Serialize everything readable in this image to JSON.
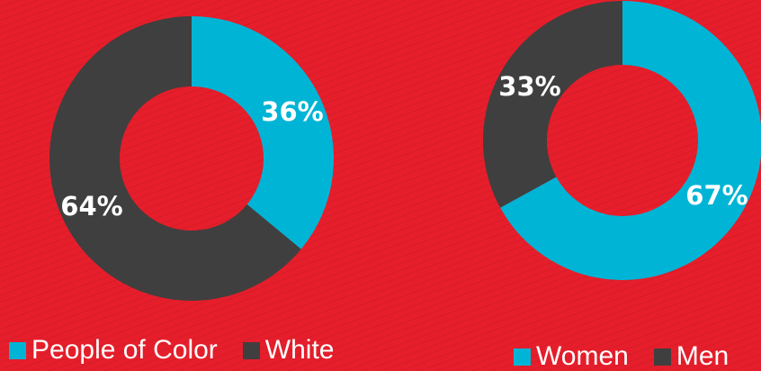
{
  "colors": {
    "background": "#e61e2b",
    "accent": "#00b4d5",
    "dark": "#3f3f3f"
  },
  "chart_data": [
    {
      "type": "pie",
      "subtype": "donut",
      "title": "",
      "slices": [
        {
          "label": "People of Color",
          "value": 36,
          "display": "36%",
          "color": "#00b4d5"
        },
        {
          "label": "White",
          "value": 64,
          "display": "64%",
          "color": "#3f3f3f"
        }
      ],
      "legend": {
        "position": "bottom-left",
        "items": [
          "People of Color",
          "White"
        ]
      }
    },
    {
      "type": "pie",
      "subtype": "donut",
      "title": "",
      "slices": [
        {
          "label": "Women",
          "value": 67,
          "display": "67%",
          "color": "#00b4d5"
        },
        {
          "label": "Men",
          "value": 33,
          "display": "33%",
          "color": "#3f3f3f"
        }
      ],
      "legend": {
        "position": "bottom-right",
        "items": [
          "Women",
          "Men"
        ]
      }
    }
  ]
}
